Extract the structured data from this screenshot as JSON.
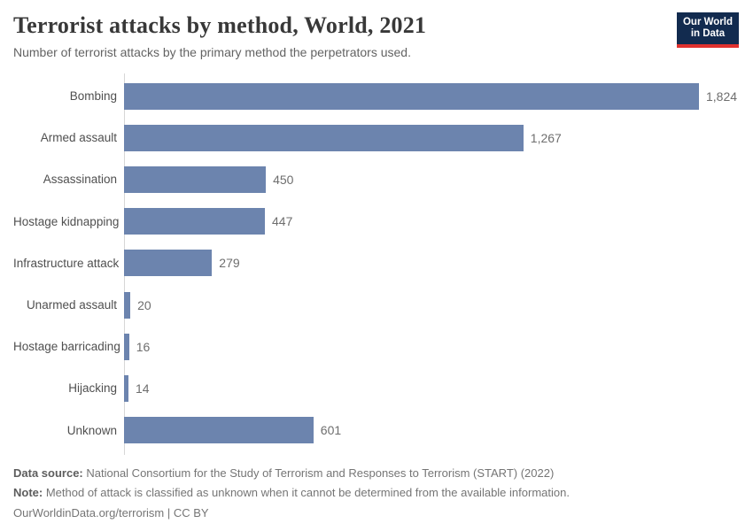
{
  "header": {
    "title": "Terrorist attacks by method, World, 2021",
    "subtitle": "Number of terrorist attacks by the primary method the perpetrators used.",
    "logo": {
      "line1": "Our World",
      "line2": "in Data"
    }
  },
  "chart_data": {
    "type": "bar",
    "orientation": "horizontal",
    "title": "Terrorist attacks by method, World, 2021",
    "xlabel": "",
    "ylabel": "",
    "categories": [
      "Bombing",
      "Armed assault",
      "Assassination",
      "Hostage kidnapping",
      "Infrastructure attack",
      "Unarmed assault",
      "Hostage barricading",
      "Hijacking",
      "Unknown"
    ],
    "values": [
      1824,
      1267,
      450,
      447,
      279,
      20,
      16,
      14,
      601
    ],
    "value_labels": [
      "1,824",
      "1,267",
      "450",
      "447",
      "279",
      "20",
      "16",
      "14",
      "601"
    ],
    "xlim": [
      0,
      1824
    ],
    "grid": false,
    "legend": false,
    "bar_color": "#6c84ae"
  },
  "footer": {
    "data_source_label": "Data source:",
    "data_source_text": "National Consortium for the Study of Terrorism and Responses to Terrorism (START) (2022)",
    "note_label": "Note:",
    "note_text": "Method of attack is classified as unknown when it cannot be determined from the available information.",
    "url": "OurWorldinData.org/terrorism",
    "separator": " | ",
    "license": "CC BY"
  },
  "colors": {
    "bar": "#6c84ae",
    "axis": "#d7d7d7",
    "logo_background": "#122b4f",
    "logo_accent": "#e0312e"
  }
}
